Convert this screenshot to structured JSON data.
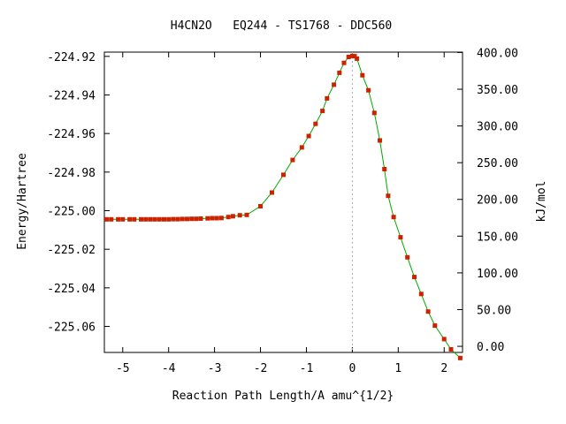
{
  "chart_data": {
    "type": "scatter",
    "title": "H4CN2O   EQ244 - TS1768 - DDC560",
    "xlabel": "Reaction Path Length/A amu^{1/2}",
    "ylabel": "Energy/Hartree",
    "y2label": "kJ/mol",
    "xlim": [
      -5.4,
      2.4
    ],
    "ylim": [
      -225.0735,
      -224.9178
    ],
    "y2lim": [
      -8.33,
      400.5
    ],
    "x_ticks": [
      -5,
      -4,
      -3,
      -2,
      -1,
      0,
      1,
      2
    ],
    "y_ticks": [
      -224.92,
      -224.94,
      -224.96,
      -224.98,
      -225.0,
      -225.02,
      -225.04,
      -225.06
    ],
    "y2_ticks": [
      0,
      50,
      100,
      150,
      200,
      250,
      300,
      350,
      400
    ],
    "x_tick_labels": [
      "-5",
      "-4",
      "-3",
      "-2",
      "-1",
      "0",
      "1",
      "2"
    ],
    "y_tick_labels": [
      "-224.92",
      "-224.94",
      "-224.96",
      "-224.98",
      "-225.00",
      "-225.02",
      "-225.04",
      "-225.06"
    ],
    "y2_tick_labels": [
      "0.00",
      "50.00",
      "100.00",
      "150.00",
      "200.00",
      "250.00",
      "300.00",
      "350.00",
      "400.00"
    ],
    "vertical_reference_x": 0,
    "grid": false,
    "colors": {
      "line": "#00aa00",
      "points": "#cc2200",
      "reference": "#aaaaaa"
    },
    "points": {
      "x": [
        -5.35,
        -5.25,
        -5.1,
        -5.0,
        -4.85,
        -4.75,
        -4.6,
        -4.5,
        -4.4,
        -4.3,
        -4.2,
        -4.1,
        -4.0,
        -3.9,
        -3.8,
        -3.7,
        -3.6,
        -3.5,
        -3.4,
        -3.3,
        -3.15,
        -3.05,
        -2.95,
        -2.85,
        -2.7,
        -2.6,
        -2.45,
        -2.3,
        -2.0,
        -1.75,
        -1.5,
        -1.3,
        -1.1,
        -0.95,
        -0.8,
        -0.65,
        -0.55,
        -0.4,
        -0.28,
        -0.18,
        -0.08,
        0.0,
        0.05,
        0.1,
        0.22,
        0.35,
        0.48,
        0.6,
        0.7,
        0.78,
        0.9,
        1.05,
        1.2,
        1.35,
        1.5,
        1.65,
        1.8,
        2.0,
        2.15,
        2.35
      ],
      "y": [
        -225.0045,
        -225.0045,
        -225.0045,
        -225.0045,
        -225.0045,
        -225.0045,
        -225.0045,
        -225.0045,
        -225.0045,
        -225.0045,
        -225.0045,
        -225.0045,
        -225.0045,
        -225.0044,
        -225.0044,
        -225.0043,
        -225.0043,
        -225.0042,
        -225.0042,
        -225.0041,
        -225.004,
        -225.0039,
        -225.0039,
        -225.0038,
        -225.0033,
        -225.0029,
        -225.0024,
        -225.0022,
        -224.9977,
        -224.9906,
        -224.9814,
        -224.9737,
        -224.9672,
        -224.9613,
        -224.955,
        -224.9483,
        -224.9418,
        -224.9347,
        -224.9285,
        -224.9234,
        -224.9203,
        -224.9198,
        -224.9199,
        -224.9212,
        -224.9298,
        -224.9376,
        -224.9493,
        -224.9636,
        -224.9785,
        -224.9923,
        -225.0033,
        -225.0138,
        -225.0242,
        -225.0344,
        -225.0432,
        -225.0523,
        -225.0596,
        -225.0666,
        -225.0719,
        -225.0764
      ]
    }
  }
}
